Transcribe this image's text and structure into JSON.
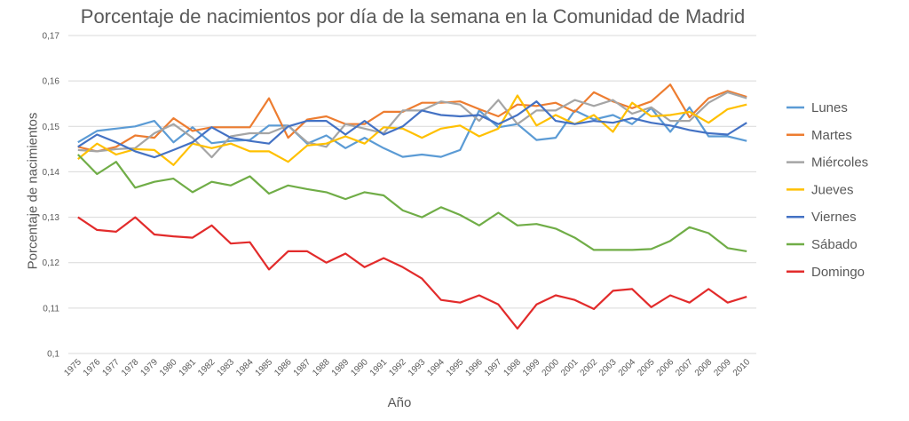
{
  "chart_data": {
    "type": "line",
    "title": "Porcentaje de nacimientos por día de la semana en la Comunidad de Madrid",
    "xlabel": "Año",
    "ylabel": "Porcentaje de nacimientos",
    "ylim": [
      0.1,
      0.17
    ],
    "yticks": [
      "0,1",
      "0,11",
      "0,12",
      "0,13",
      "0,14",
      "0,15",
      "0,16",
      "0,17"
    ],
    "grid": true,
    "legend_position": "right",
    "categories": [
      "1975",
      "1976",
      "1977",
      "1978",
      "1979",
      "1980",
      "1981",
      "1982",
      "1983",
      "1984",
      "1985",
      "1986",
      "1987",
      "1988",
      "1989",
      "1990",
      "1991",
      "1992",
      "1993",
      "1994",
      "1995",
      "1996",
      "1997",
      "1998",
      "1999",
      "2000",
      "2001",
      "2002",
      "2003",
      "2004",
      "2005",
      "2006",
      "2007",
      "2008",
      "2009",
      "2010"
    ],
    "series": [
      {
        "name": "Lunes",
        "color": "#5b9bd5",
        "values": [
          0.1465,
          0.149,
          0.1495,
          0.15,
          0.1512,
          0.1465,
          0.1498,
          0.1463,
          0.1468,
          0.147,
          0.1502,
          0.1502,
          0.1462,
          0.148,
          0.1452,
          0.1475,
          0.1452,
          0.1433,
          0.1438,
          0.1433,
          0.1448,
          0.1535,
          0.1498,
          0.1505,
          0.147,
          0.1475,
          0.1535,
          0.1515,
          0.1525,
          0.1505,
          0.154,
          0.1488,
          0.1542,
          0.1478,
          0.1478,
          0.1468
        ]
      },
      {
        "name": "Martes",
        "color": "#ed7d31",
        "values": [
          0.1455,
          0.1445,
          0.1455,
          0.148,
          0.1475,
          0.1518,
          0.149,
          0.1498,
          0.1498,
          0.1498,
          0.1562,
          0.1475,
          0.1515,
          0.1522,
          0.1505,
          0.1505,
          0.1532,
          0.1532,
          0.1552,
          0.1552,
          0.1555,
          0.1538,
          0.1522,
          0.1548,
          0.1545,
          0.1552,
          0.1532,
          0.1575,
          0.1555,
          0.154,
          0.1555,
          0.1592,
          0.152,
          0.1562,
          0.1578,
          0.1565
        ]
      },
      {
        "name": "Miércoles",
        "color": "#a5a5a5",
        "values": [
          0.1448,
          0.1445,
          0.145,
          0.1452,
          0.1485,
          0.1505,
          0.1475,
          0.1432,
          0.1478,
          0.1485,
          0.1485,
          0.1502,
          0.1465,
          0.1455,
          0.1505,
          0.1495,
          0.1485,
          0.1535,
          0.1535,
          0.1555,
          0.1548,
          0.1512,
          0.1558,
          0.1505,
          0.1535,
          0.1535,
          0.1558,
          0.1545,
          0.1558,
          0.1528,
          0.1542,
          0.1512,
          0.1512,
          0.1552,
          0.1575,
          0.1562
        ]
      },
      {
        "name": "Jueves",
        "color": "#ffc000",
        "values": [
          0.1428,
          0.1462,
          0.1438,
          0.145,
          0.1448,
          0.1415,
          0.1462,
          0.1452,
          0.1462,
          0.1445,
          0.1445,
          0.1422,
          0.1458,
          0.1462,
          0.1478,
          0.1462,
          0.1498,
          0.1495,
          0.1475,
          0.1495,
          0.1502,
          0.1478,
          0.1495,
          0.1568,
          0.1502,
          0.1525,
          0.1505,
          0.1525,
          0.1488,
          0.1552,
          0.1522,
          0.1525,
          0.1532,
          0.1508,
          0.1538,
          0.1548
        ]
      },
      {
        "name": "Viernes",
        "color": "#4472c4",
        "values": [
          0.1455,
          0.1482,
          0.1465,
          0.1445,
          0.1432,
          0.1448,
          0.1465,
          0.1498,
          0.1475,
          0.1468,
          0.1462,
          0.15,
          0.1512,
          0.1512,
          0.1482,
          0.1512,
          0.1482,
          0.15,
          0.1535,
          0.1525,
          0.1522,
          0.1525,
          0.1505,
          0.1525,
          0.1555,
          0.1512,
          0.1505,
          0.1512,
          0.1508,
          0.1518,
          0.1508,
          0.1502,
          0.1492,
          0.1485,
          0.1482,
          0.1508
        ]
      },
      {
        "name": "Sábado",
        "color": "#70ad47",
        "values": [
          0.1438,
          0.1395,
          0.1422,
          0.1365,
          0.1378,
          0.1385,
          0.1355,
          0.1378,
          0.137,
          0.139,
          0.1352,
          0.137,
          0.1362,
          0.1355,
          0.134,
          0.1355,
          0.1348,
          0.1315,
          0.13,
          0.1322,
          0.1305,
          0.1282,
          0.131,
          0.1282,
          0.1285,
          0.1275,
          0.1255,
          0.1228,
          0.1228,
          0.1228,
          0.123,
          0.1248,
          0.1278,
          0.1265,
          0.1232,
          0.1225
        ]
      },
      {
        "name": "Domingo",
        "color": "#e22b2b",
        "values": [
          0.13,
          0.1272,
          0.1268,
          0.13,
          0.1262,
          0.1258,
          0.1255,
          0.1282,
          0.1242,
          0.1245,
          0.1185,
          0.1225,
          0.1225,
          0.12,
          0.122,
          0.119,
          0.121,
          0.119,
          0.1165,
          0.1118,
          0.1112,
          0.1128,
          0.1108,
          0.1055,
          0.1108,
          0.1128,
          0.1118,
          0.1098,
          0.1138,
          0.1142,
          0.1102,
          0.1128,
          0.1112,
          0.1142,
          0.1112,
          0.1125
        ]
      }
    ]
  }
}
